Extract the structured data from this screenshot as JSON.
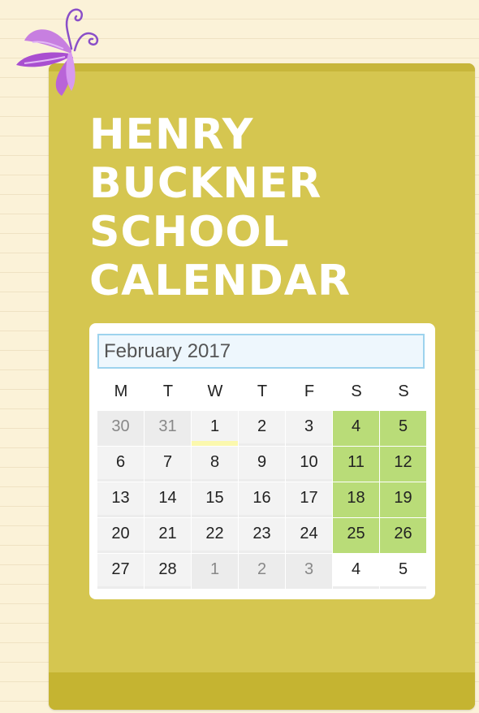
{
  "page": {
    "title_lines": [
      "HENRY",
      "BUCKNER",
      "SCHOOL",
      "CALENDAR"
    ]
  },
  "calendar": {
    "month_label": "February 2017",
    "weekdays": [
      "M",
      "T",
      "W",
      "T",
      "F",
      "S",
      "S"
    ],
    "weeks": [
      [
        {
          "label": "30",
          "style": "other"
        },
        {
          "label": "31",
          "style": "other"
        },
        {
          "label": "1",
          "style": "today"
        },
        {
          "label": "2",
          "style": "normal"
        },
        {
          "label": "3",
          "style": "normal"
        },
        {
          "label": "4",
          "style": "weekend"
        },
        {
          "label": "5",
          "style": "weekend"
        }
      ],
      [
        {
          "label": "6",
          "style": "normal"
        },
        {
          "label": "7",
          "style": "normal"
        },
        {
          "label": "8",
          "style": "normal"
        },
        {
          "label": "9",
          "style": "normal"
        },
        {
          "label": "10",
          "style": "normal"
        },
        {
          "label": "11",
          "style": "weekend"
        },
        {
          "label": "12",
          "style": "weekend"
        }
      ],
      [
        {
          "label": "13",
          "style": "normal"
        },
        {
          "label": "14",
          "style": "normal"
        },
        {
          "label": "15",
          "style": "normal"
        },
        {
          "label": "16",
          "style": "normal"
        },
        {
          "label": "17",
          "style": "normal"
        },
        {
          "label": "18",
          "style": "weekend"
        },
        {
          "label": "19",
          "style": "weekend"
        }
      ],
      [
        {
          "label": "20",
          "style": "normal"
        },
        {
          "label": "21",
          "style": "normal"
        },
        {
          "label": "22",
          "style": "normal"
        },
        {
          "label": "23",
          "style": "normal"
        },
        {
          "label": "24",
          "style": "normal"
        },
        {
          "label": "25",
          "style": "weekend"
        },
        {
          "label": "26",
          "style": "weekend"
        }
      ],
      [
        {
          "label": "27",
          "style": "normal"
        },
        {
          "label": "28",
          "style": "normal"
        },
        {
          "label": "1",
          "style": "other"
        },
        {
          "label": "2",
          "style": "other"
        },
        {
          "label": "3",
          "style": "other"
        },
        {
          "label": "4",
          "style": "plain"
        },
        {
          "label": "5",
          "style": "plain"
        }
      ]
    ]
  },
  "colors": {
    "panel": "#d5c650",
    "panel_dark": "#c5b431",
    "weekend_highlight": "#b9dc78",
    "today_marker": "#fbf8ae",
    "input_border": "#9dd3ee"
  },
  "icons": {
    "decoration": "butterfly-icon"
  }
}
